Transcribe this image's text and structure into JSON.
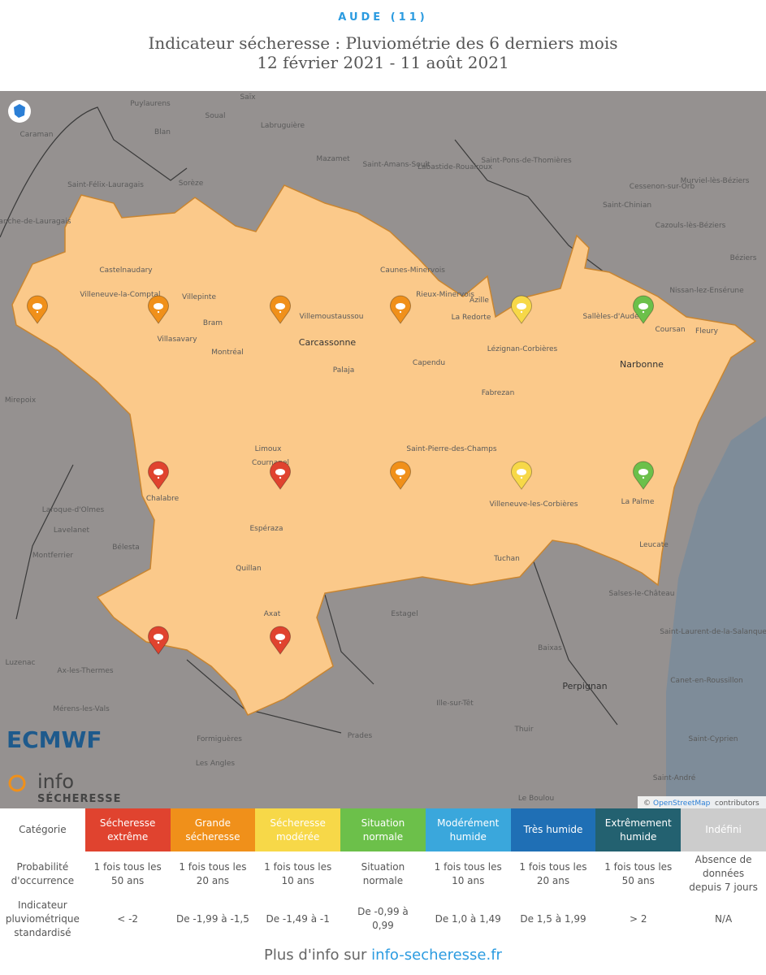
{
  "header": {
    "department": "AUDE (11)",
    "title": "Indicateur sécheresse : Pluviométrie des 6 derniers mois",
    "period": "12 février 2021 - 11 août 2021"
  },
  "map": {
    "place_labels": [
      "Puylaurens",
      "Soual",
      "Saïx",
      "Labruguière",
      "Caraman",
      "Blan",
      "Mazamet",
      "Saint-Amans-Soult",
      "Labastide-Rouairoux",
      "Saint-Pons-de-Thomières",
      "Sorèze",
      "Saint-Félix-Lauragais",
      "Villefranche-de-Lauragais",
      "Saint-Chinian",
      "Cessenon-sur-Orb",
      "Murviel-lès-Béziers",
      "Cazouls-lès-Béziers",
      "Béziers",
      "Nissan-lez-Ensérune",
      "Castelnaudary",
      "Villeneuve-la-Comptal",
      "Villepinte",
      "Bram",
      "Villasavary",
      "Montréal",
      "Carcassonne",
      "Villemoustaussou",
      "Caunes-Minervois",
      "Rieux-Minervois",
      "Azille",
      "La Redorte",
      "Lézignan-Corbières",
      "Capendu",
      "Palaja",
      "Fabrezan",
      "Saint-Pierre-des-Champs",
      "Sallèles-d'Aude",
      "Coursan",
      "Fleury",
      "Narbonne",
      "Mirepoix",
      "Limoux",
      "Cournanel",
      "Chalabre",
      "Villeneuve-les-Corbières",
      "La Palme",
      "Leucate",
      "Espéraza",
      "Laroque-d'Olmes",
      "Lavelanet",
      "Montferrier",
      "Bélesta",
      "Quillan",
      "Tuchan",
      "Salses-le-Château",
      "Axat",
      "Estagel",
      "Saint-Laurent-de-la-Salanque",
      "Baixas",
      "Perpignan",
      "Canet-en-Roussillon",
      "Ille-sur-Têt",
      "Prades",
      "Thuir",
      "Saint-Cyprien",
      "Luzenac",
      "Ax-les-Thermes",
      "Mérens-les-Vals",
      "Formiguères",
      "Les Angles",
      "Saint-André",
      "Le Boulou"
    ],
    "markers": [
      "#f0901a",
      "#f0901a",
      "#f0901a",
      "#f0901a",
      "#f7d848",
      "#6cc04a",
      "#e0432f",
      "#e0432f",
      "#f0901a",
      "#f7d848",
      "#6cc04a",
      "#e0432f",
      "#e0432f"
    ],
    "attribution": {
      "symbol": "©",
      "link": "OpenStreetMap",
      "text": "contributors"
    },
    "logos": {
      "ecmwf": "ECMWF",
      "info": "info",
      "secheresse": "SÉCHERESSE"
    }
  },
  "legend": {
    "row_headers": [
      "Catégorie",
      "Probabilité d'occurrence",
      "Indicateur pluviométrique standardisé"
    ],
    "categories": [
      {
        "name": "Sécheresse extrême",
        "color": "#e0432f",
        "probability": "1 fois tous les 50 ans",
        "indicator": "< -2"
      },
      {
        "name": "Grande sécheresse",
        "color": "#f0901a",
        "probability": "1 fois tous les 20 ans",
        "indicator": "De -1,99 à -1,5"
      },
      {
        "name": "Sécheresse modérée",
        "color": "#f7d848",
        "probability": "1 fois tous les 10 ans",
        "indicator": "De -1,49 à -1"
      },
      {
        "name": "Situation normale",
        "color": "#6cc04a",
        "probability": "Situation normale",
        "indicator": "De -0,99 à 0,99"
      },
      {
        "name": "Modérément humide",
        "color": "#3aa7dc",
        "probability": "1 fois tous les 10 ans",
        "indicator": "De 1,0 à 1,49"
      },
      {
        "name": "Très humide",
        "color": "#1f6fb5",
        "probability": "1 fois tous les 20 ans",
        "indicator": "De 1,5 à 1,99"
      },
      {
        "name": "Extrêmement humide",
        "color": "#236170",
        "probability": "1 fois tous les 50 ans",
        "indicator": "> 2"
      },
      {
        "name": "Indéfini",
        "color": "#cccccc",
        "probability": "Absence de données depuis 7 jours",
        "indicator": "N/A"
      }
    ]
  },
  "footer": {
    "text": "Plus d'info sur",
    "link": "info-secheresse.fr"
  }
}
